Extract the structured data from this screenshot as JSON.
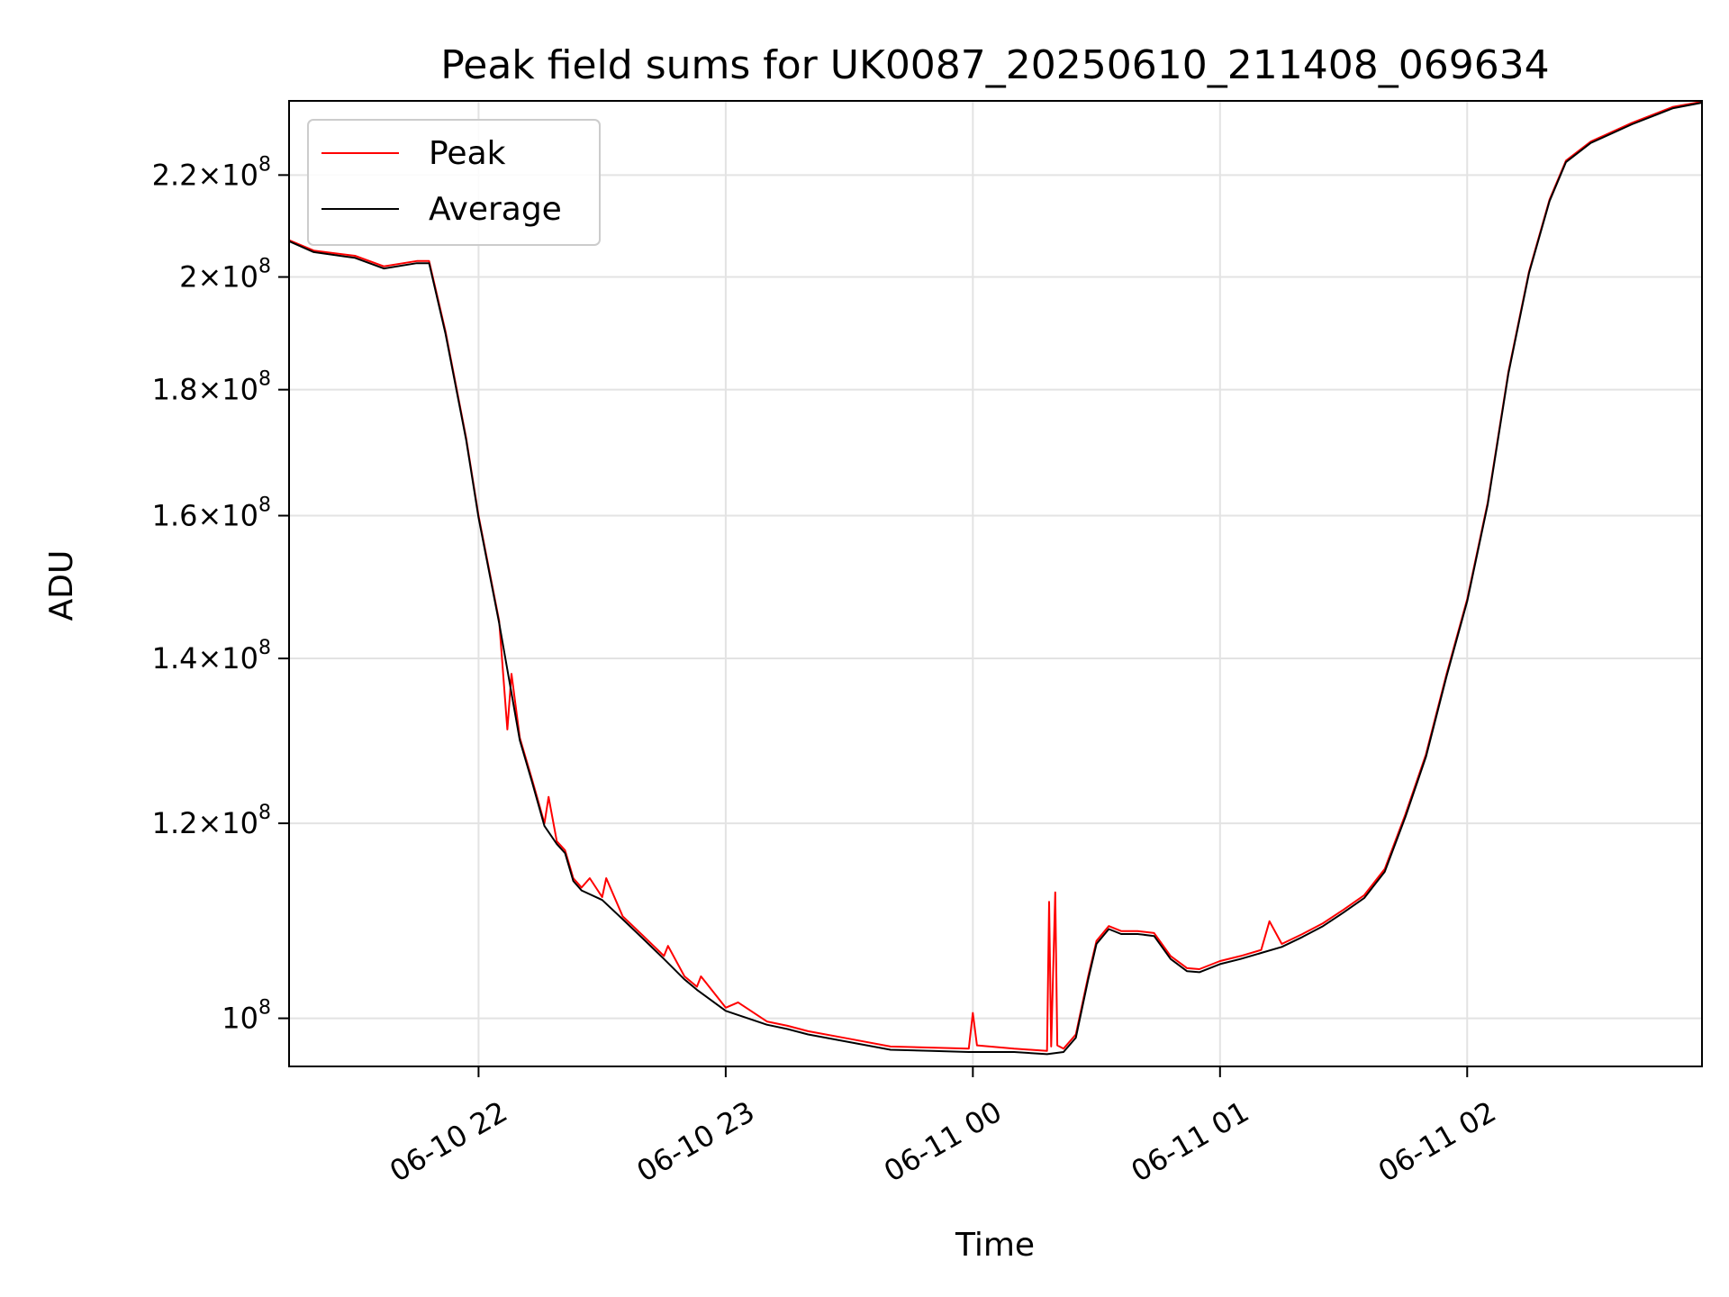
{
  "chart_data": {
    "type": "line",
    "title": "Peak field sums for UK0087_20250610_211408_069634",
    "xlabel": "Time",
    "ylabel": "ADU",
    "yscale": "log",
    "grid": true,
    "legend_position": "upper left",
    "xlim": [
      "2025-06-10 21:14",
      "2025-06-11 02:57"
    ],
    "ylim": [
      95600000,
      235800000
    ],
    "x_ticks": [
      "2025-06-10 22:00",
      "2025-06-10 23:00",
      "2025-06-11 00:00",
      "2025-06-11 01:00",
      "2025-06-11 02:00"
    ],
    "x_tick_labels": [
      "06-10 22",
      "06-10 23",
      "06-11 00",
      "06-11 01",
      "06-11 02"
    ],
    "y_ticks": [
      {
        "value": 100000000,
        "mant": "",
        "exp": "8"
      },
      {
        "value": 120000000,
        "mant": "1.2",
        "exp": "8"
      },
      {
        "value": 140000000,
        "mant": "1.4",
        "exp": "8"
      },
      {
        "value": 160000000,
        "mant": "1.6",
        "exp": "8"
      },
      {
        "value": 180000000,
        "mant": "1.8",
        "exp": "8"
      },
      {
        "value": 200000000,
        "mant": "2",
        "exp": "8"
      },
      {
        "value": 220000000,
        "mant": "2.2",
        "exp": "8"
      }
    ],
    "series": [
      {
        "name": "Peak",
        "color": "#ff0000",
        "points": [
          [
            "2025-06-10 21:14",
            207000000
          ],
          [
            "2025-06-10 21:20",
            205000000
          ],
          [
            "2025-06-10 21:30",
            204000000
          ],
          [
            "2025-06-10 21:37",
            202000000
          ],
          [
            "2025-06-10 21:45",
            203000000
          ],
          [
            "2025-06-10 21:48",
            203000000
          ],
          [
            "2025-06-10 21:52",
            190000000
          ],
          [
            "2025-06-10 21:57",
            172000000
          ],
          [
            "2025-06-10 22:00",
            160000000
          ],
          [
            "2025-06-10 22:05",
            145000000
          ],
          [
            "2025-06-10 22:07",
            131000000
          ],
          [
            "2025-06-10 22:08",
            138000000
          ],
          [
            "2025-06-10 22:10",
            130000000
          ],
          [
            "2025-06-10 22:13",
            125000000
          ],
          [
            "2025-06-10 22:16",
            120000000
          ],
          [
            "2025-06-10 22:17",
            123000000
          ],
          [
            "2025-06-10 22:19",
            118000000
          ],
          [
            "2025-06-10 22:21",
            117000000
          ],
          [
            "2025-06-10 22:23",
            114000000
          ],
          [
            "2025-06-10 22:25",
            113000000
          ],
          [
            "2025-06-10 22:27",
            114000000
          ],
          [
            "2025-06-10 22:30",
            112000000
          ],
          [
            "2025-06-10 22:31",
            114000000
          ],
          [
            "2025-06-10 22:35",
            110000000
          ],
          [
            "2025-06-10 22:40",
            108000000
          ],
          [
            "2025-06-10 22:45",
            106000000
          ],
          [
            "2025-06-10 22:46",
            107000000
          ],
          [
            "2025-06-10 22:50",
            104000000
          ],
          [
            "2025-06-10 22:53",
            103000000
          ],
          [
            "2025-06-10 22:54",
            104000000
          ],
          [
            "2025-06-10 23:00",
            101000000
          ],
          [
            "2025-06-10 23:03",
            101500000
          ],
          [
            "2025-06-10 23:10",
            99700000
          ],
          [
            "2025-06-10 23:15",
            99300000
          ],
          [
            "2025-06-10 23:20",
            98800000
          ],
          [
            "2025-06-10 23:30",
            98100000
          ],
          [
            "2025-06-10 23:40",
            97400000
          ],
          [
            "2025-06-10 23:50",
            97300000
          ],
          [
            "2025-06-10 23:59",
            97200000
          ],
          [
            "2025-06-11 00:00",
            100500000
          ],
          [
            "2025-06-11 00:01",
            97500000
          ],
          [
            "2025-06-11 00:10",
            97200000
          ],
          [
            "2025-06-11 00:18",
            97000000
          ],
          [
            "2025-06-11 00:18:30",
            111500000
          ],
          [
            "2025-06-11 00:19",
            97400000
          ],
          [
            "2025-06-11 00:20",
            112500000
          ],
          [
            "2025-06-11 00:20:30",
            97500000
          ],
          [
            "2025-06-11 00:22",
            97200000
          ],
          [
            "2025-06-11 00:25",
            98500000
          ],
          [
            "2025-06-11 00:28",
            104000000
          ],
          [
            "2025-06-11 00:30",
            107500000
          ],
          [
            "2025-06-11 00:33",
            109000000
          ],
          [
            "2025-06-11 00:36",
            108500000
          ],
          [
            "2025-06-11 00:40",
            108500000
          ],
          [
            "2025-06-11 00:44",
            108300000
          ],
          [
            "2025-06-11 00:48",
            106000000
          ],
          [
            "2025-06-11 00:52",
            104800000
          ],
          [
            "2025-06-11 00:55",
            104700000
          ],
          [
            "2025-06-11 01:00",
            105500000
          ],
          [
            "2025-06-11 01:05",
            106000000
          ],
          [
            "2025-06-11 01:10",
            106600000
          ],
          [
            "2025-06-11 01:12",
            109500000
          ],
          [
            "2025-06-11 01:15",
            107200000
          ],
          [
            "2025-06-11 01:20",
            108200000
          ],
          [
            "2025-06-11 01:25",
            109300000
          ],
          [
            "2025-06-11 01:30",
            110700000
          ],
          [
            "2025-06-11 01:35",
            112200000
          ],
          [
            "2025-06-11 01:40",
            115000000
          ],
          [
            "2025-06-11 01:45",
            121000000
          ],
          [
            "2025-06-11 01:50",
            128000000
          ],
          [
            "2025-06-11 01:55",
            138000000
          ],
          [
            "2025-06-11 02:00",
            148000000
          ],
          [
            "2025-06-11 02:05",
            162000000
          ],
          [
            "2025-06-11 02:10",
            183000000
          ],
          [
            "2025-06-11 02:15",
            201000000
          ],
          [
            "2025-06-11 02:20",
            215000000
          ],
          [
            "2025-06-11 02:24",
            223000000
          ],
          [
            "2025-06-11 02:30",
            227000000
          ],
          [
            "2025-06-11 02:40",
            231000000
          ],
          [
            "2025-06-11 02:50",
            234500000
          ],
          [
            "2025-06-11 02:57",
            235600000
          ]
        ]
      },
      {
        "name": "Average",
        "color": "#000000",
        "points": [
          [
            "2025-06-10 21:14",
            206800000
          ],
          [
            "2025-06-10 21:20",
            204700000
          ],
          [
            "2025-06-10 21:30",
            203600000
          ],
          [
            "2025-06-10 21:37",
            201600000
          ],
          [
            "2025-06-10 21:45",
            202600000
          ],
          [
            "2025-06-10 21:48",
            202600000
          ],
          [
            "2025-06-10 21:52",
            189600000
          ],
          [
            "2025-06-10 21:57",
            171700000
          ],
          [
            "2025-06-10 22:00",
            159700000
          ],
          [
            "2025-06-10 22:05",
            144700000
          ],
          [
            "2025-06-10 22:10",
            129700000
          ],
          [
            "2025-06-10 22:13",
            124700000
          ],
          [
            "2025-06-10 22:16",
            119700000
          ],
          [
            "2025-06-10 22:19",
            117700000
          ],
          [
            "2025-06-10 22:21",
            116700000
          ],
          [
            "2025-06-10 22:23",
            113700000
          ],
          [
            "2025-06-10 22:25",
            112700000
          ],
          [
            "2025-06-10 22:30",
            111700000
          ],
          [
            "2025-06-10 22:35",
            109700000
          ],
          [
            "2025-06-10 22:40",
            107700000
          ],
          [
            "2025-06-10 22:45",
            105700000
          ],
          [
            "2025-06-10 22:50",
            103700000
          ],
          [
            "2025-06-10 22:53",
            102700000
          ],
          [
            "2025-06-10 23:00",
            100700000
          ],
          [
            "2025-06-10 23:10",
            99400000
          ],
          [
            "2025-06-10 23:15",
            99000000
          ],
          [
            "2025-06-10 23:20",
            98500000
          ],
          [
            "2025-06-10 23:30",
            97800000
          ],
          [
            "2025-06-10 23:40",
            97100000
          ],
          [
            "2025-06-10 23:50",
            97000000
          ],
          [
            "2025-06-10 23:59",
            96900000
          ],
          [
            "2025-06-11 00:10",
            96900000
          ],
          [
            "2025-06-11 00:18",
            96700000
          ],
          [
            "2025-06-11 00:22",
            96900000
          ],
          [
            "2025-06-11 00:25",
            98200000
          ],
          [
            "2025-06-11 00:28",
            103700000
          ],
          [
            "2025-06-11 00:30",
            107200000
          ],
          [
            "2025-06-11 00:33",
            108700000
          ],
          [
            "2025-06-11 00:36",
            108200000
          ],
          [
            "2025-06-11 00:40",
            108200000
          ],
          [
            "2025-06-11 00:44",
            108000000
          ],
          [
            "2025-06-11 00:48",
            105700000
          ],
          [
            "2025-06-11 00:52",
            104500000
          ],
          [
            "2025-06-11 00:55",
            104400000
          ],
          [
            "2025-06-11 01:00",
            105200000
          ],
          [
            "2025-06-11 01:05",
            105700000
          ],
          [
            "2025-06-11 01:10",
            106300000
          ],
          [
            "2025-06-11 01:15",
            106900000
          ],
          [
            "2025-06-11 01:20",
            107900000
          ],
          [
            "2025-06-11 01:25",
            109000000
          ],
          [
            "2025-06-11 01:30",
            110400000
          ],
          [
            "2025-06-11 01:35",
            111900000
          ],
          [
            "2025-06-11 01:40",
            114700000
          ],
          [
            "2025-06-11 01:45",
            120700000
          ],
          [
            "2025-06-11 01:50",
            127700000
          ],
          [
            "2025-06-11 01:55",
            137700000
          ],
          [
            "2025-06-11 02:00",
            147700000
          ],
          [
            "2025-06-11 02:05",
            161700000
          ],
          [
            "2025-06-11 02:10",
            182700000
          ],
          [
            "2025-06-11 02:15",
            200700000
          ],
          [
            "2025-06-11 02:20",
            214700000
          ],
          [
            "2025-06-11 02:24",
            222700000
          ],
          [
            "2025-06-11 02:30",
            226700000
          ],
          [
            "2025-06-11 02:40",
            230700000
          ],
          [
            "2025-06-11 02:50",
            234200000
          ],
          [
            "2025-06-11 02:57",
            235400000
          ]
        ]
      }
    ]
  }
}
